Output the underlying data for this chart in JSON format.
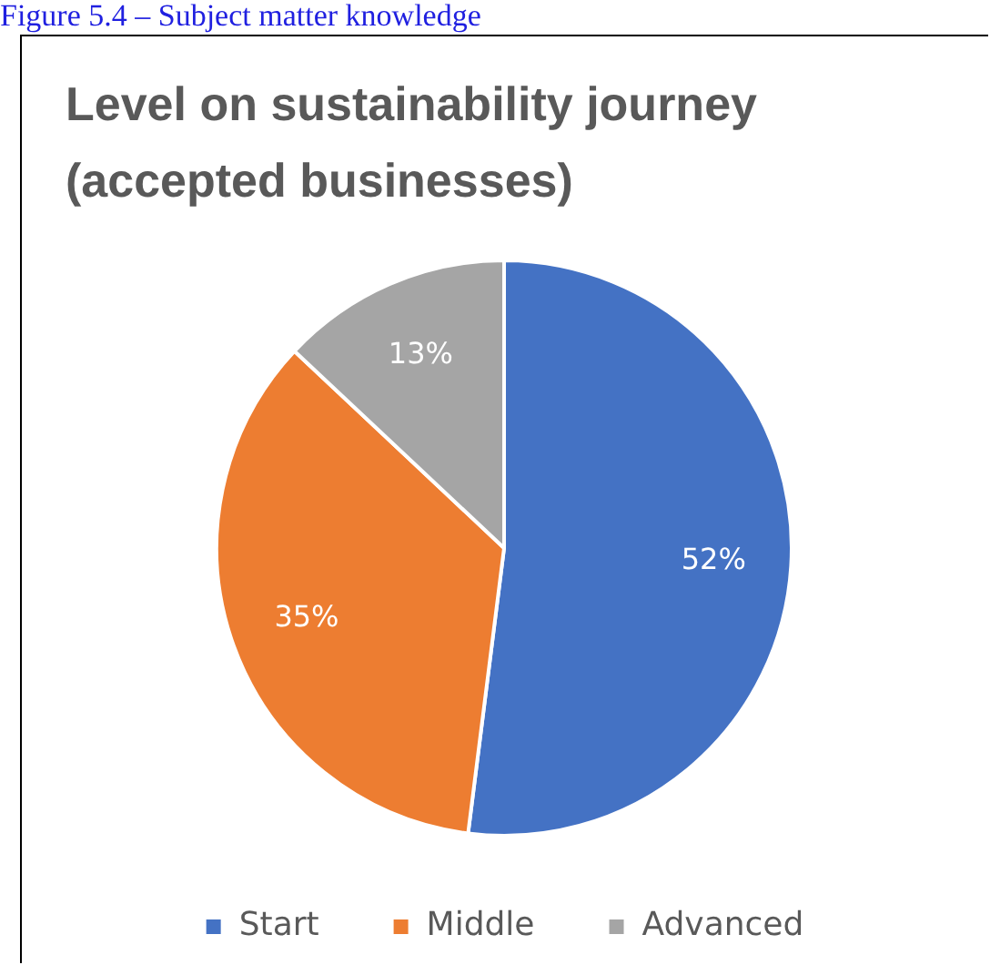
{
  "chart_data": {
    "type": "pie",
    "title": "Level on sustainability journey (accepted businesses)",
    "annotations": [
      "Figure 5.4 – Subject matter knowledge"
    ],
    "categories": [
      "Start",
      "Middle",
      "Advanced"
    ],
    "values": [
      52,
      35,
      13
    ],
    "colors": [
      "#4472c4",
      "#ed7d31",
      "#a5a5a5"
    ],
    "value_labels": [
      "52%",
      "35%",
      "13%"
    ],
    "legend": "bottom"
  }
}
